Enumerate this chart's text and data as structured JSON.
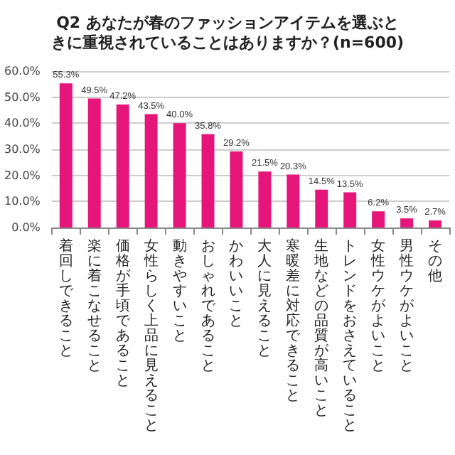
{
  "chart_data": {
    "type": "bar",
    "title": "Q2 あなたが春のファッションアイテムを選ぶときに重視されていることはありますか？(n=600)",
    "categories": [
      "着回しできること",
      "楽に着こなせること",
      "価格が手頃であること",
      "女性らしく上品に見えること",
      "動きやすいこと",
      "おしゃれであること",
      "かわいいこと",
      "大人に見えること",
      "寒暖差に対応できること",
      "生地などの品質が高いこと",
      "トレンドをおさえていること",
      "女性ウケがよいこと",
      "男性ウケがよいこと",
      "その他"
    ],
    "values": [
      55.3,
      49.5,
      47.2,
      43.5,
      40.0,
      35.8,
      29.2,
      21.5,
      20.3,
      14.5,
      13.5,
      6.2,
      3.5,
      2.7
    ],
    "value_labels": [
      "55.3%",
      "49.5%",
      "47.2%",
      "43.5%",
      "40.0%",
      "35.8%",
      "29.2%",
      "21.5%",
      "20.3%",
      "14.5%",
      "13.5%",
      "6.2%",
      "3.5%",
      "2.7%"
    ],
    "color": "#e5157a",
    "ylim": [
      0,
      60
    ],
    "yticks": [
      {
        "value": 0,
        "label": "0.0%"
      },
      {
        "value": 10,
        "label": "10.0%"
      },
      {
        "value": 20,
        "label": "20.0%"
      },
      {
        "value": 30,
        "label": "30.0%"
      },
      {
        "value": 40,
        "label": "40.0%"
      },
      {
        "value": 50,
        "label": "50.0%"
      },
      {
        "value": 60,
        "label": "60.0%"
      }
    ],
    "grid": "y"
  }
}
